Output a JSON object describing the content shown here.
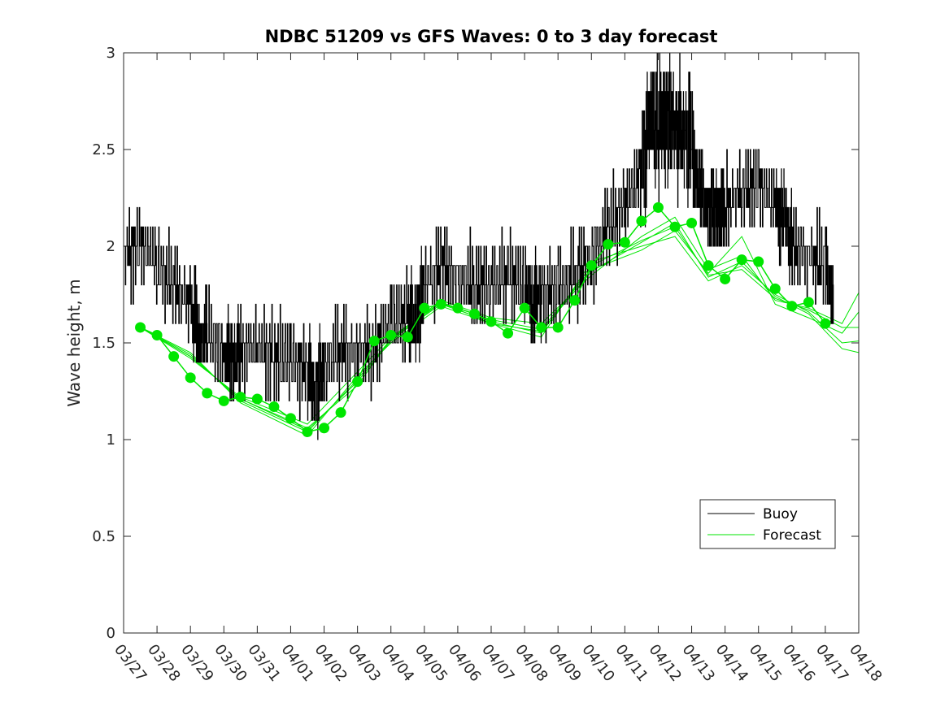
{
  "chart_data": {
    "type": "line",
    "title": "NDBC 51209 vs GFS Waves: 0 to 3 day forecast",
    "xlabel": "",
    "ylabel": "Wave height, m",
    "xlim": [
      0,
      22
    ],
    "ylim": [
      0,
      3
    ],
    "yticks": [
      0,
      0.5,
      1,
      1.5,
      2,
      2.5,
      3
    ],
    "ytick_labels": [
      "0",
      "0.5",
      "1",
      "1.5",
      "2",
      "2.5",
      "3"
    ],
    "xtick_labels": [
      "03/27",
      "03/28",
      "03/29",
      "03/30",
      "03/31",
      "04/01",
      "04/02",
      "04/03",
      "04/04",
      "04/05",
      "04/06",
      "04/07",
      "04/08",
      "04/09",
      "04/10",
      "04/11",
      "04/12",
      "04/13",
      "04/14",
      "04/15",
      "04/16",
      "04/17",
      "04/18"
    ],
    "legend": {
      "position": "bottom-right",
      "entries": [
        {
          "label": "Buoy",
          "color": "#000000"
        },
        {
          "label": "Forecast",
          "color": "#00e600"
        }
      ]
    },
    "series": [
      {
        "name": "Buoy",
        "color": "#000000",
        "x": [
          0,
          0.5,
          1,
          1.5,
          2,
          2.25,
          2.5,
          3,
          3.25,
          3.5,
          4,
          4.5,
          5,
          5.5,
          5.75,
          6,
          6.5,
          7,
          7.5,
          8,
          8.5,
          8.75,
          9,
          9.5,
          10,
          10.5,
          11,
          11.5,
          12,
          12.25,
          12.5,
          13,
          13.5,
          14,
          14.5,
          15,
          15.5,
          15.75,
          16,
          16.25,
          16.5,
          16.75,
          17,
          17.25,
          17.5,
          17.75,
          18,
          18.5,
          19,
          19.5,
          19.75,
          20,
          20.5,
          21,
          21.25
        ],
        "values": [
          1.95,
          2.0,
          1.9,
          1.8,
          1.7,
          1.55,
          1.55,
          1.45,
          1.4,
          1.45,
          1.45,
          1.45,
          1.4,
          1.35,
          1.25,
          1.4,
          1.45,
          1.45,
          1.45,
          1.6,
          1.65,
          1.6,
          1.8,
          1.9,
          1.85,
          1.8,
          1.8,
          1.85,
          1.8,
          1.7,
          1.75,
          1.8,
          1.85,
          1.95,
          2.1,
          2.2,
          2.4,
          2.65,
          2.6,
          2.7,
          2.6,
          2.6,
          2.5,
          2.3,
          2.2,
          2.2,
          2.2,
          2.3,
          2.3,
          2.2,
          2.15,
          2.0,
          1.95,
          1.9,
          1.75
        ],
        "markers": false
      },
      {
        "name": "Forecast",
        "color": "#00e600",
        "x": [
          0.5,
          1,
          1.5,
          2,
          2.5,
          3,
          3.5,
          4,
          4.5,
          5,
          5.5,
          6,
          6.5,
          7,
          7.5,
          8,
          8.5,
          9,
          9.5,
          10,
          10.5,
          11,
          11.5,
          12,
          12.5,
          13,
          13.5,
          14,
          14.5,
          15,
          15.5,
          16,
          16.5,
          17,
          17.5,
          18,
          18.5,
          19,
          19.5,
          20,
          20.5,
          21
        ],
        "values": [
          1.58,
          1.54,
          1.43,
          1.32,
          1.24,
          1.2,
          1.22,
          1.21,
          1.17,
          1.11,
          1.04,
          1.06,
          1.14,
          1.3,
          1.51,
          1.54,
          1.53,
          1.68,
          1.7,
          1.68,
          1.65,
          1.61,
          1.55,
          1.68,
          1.58,
          1.58,
          1.72,
          1.9,
          2.01,
          2.02,
          2.13,
          2.2,
          2.1,
          2.12,
          1.9,
          1.83,
          1.93,
          1.92,
          1.78,
          1.69,
          1.71,
          1.6
        ],
        "markers": true
      }
    ],
    "forecast_spread": [
      {
        "x": [
          0.5,
          2,
          3.5,
          5.5,
          7,
          8,
          9.5,
          11,
          12.5,
          14,
          15.5,
          16.5,
          17.5,
          18.5,
          19.5,
          20.5,
          21.5,
          22
        ],
        "values": [
          1.58,
          1.43,
          1.21,
          1.06,
          1.28,
          1.52,
          1.72,
          1.63,
          1.6,
          1.85,
          2.05,
          2.15,
          1.88,
          1.95,
          1.72,
          1.68,
          1.6,
          1.76
        ]
      },
      {
        "x": [
          0.5,
          2,
          3.5,
          5.5,
          7,
          8,
          9.5,
          11,
          12.5,
          14,
          15.5,
          16.5,
          17.5,
          18.5,
          19.5,
          20.5,
          21.5,
          22
        ],
        "values": [
          1.58,
          1.45,
          1.19,
          1.02,
          1.33,
          1.5,
          1.69,
          1.6,
          1.53,
          1.92,
          2.0,
          2.05,
          1.82,
          1.9,
          1.75,
          1.66,
          1.5,
          1.51
        ]
      },
      {
        "x": [
          0.5,
          2,
          3.5,
          5.5,
          7,
          8,
          9.5,
          11,
          12.5,
          14,
          15.5,
          16.5,
          17.5,
          18.5,
          19.5,
          20.5,
          21.5,
          22
        ],
        "values": [
          1.58,
          1.42,
          1.22,
          1.08,
          1.35,
          1.53,
          1.71,
          1.62,
          1.57,
          1.88,
          1.98,
          2.08,
          1.86,
          2.05,
          1.7,
          1.63,
          1.55,
          1.66
        ]
      },
      {
        "x": [
          0.5,
          2,
          3.5,
          5.5,
          7,
          8,
          9.5,
          11,
          12.5,
          14,
          15.5,
          16.5,
          17.5,
          18.5,
          19.5,
          20.5,
          21.5,
          22
        ],
        "values": [
          1.58,
          1.44,
          1.2,
          1.04,
          1.31,
          1.52,
          1.7,
          1.61,
          1.55,
          1.9,
          2.03,
          2.1,
          1.85,
          1.88,
          1.73,
          1.67,
          1.58,
          1.58
        ]
      },
      {
        "x": [
          0.5,
          2,
          3.5,
          5.5,
          7,
          8,
          9.5,
          11,
          12.5,
          14,
          15.5,
          16.5,
          17.5,
          18.5,
          19.5,
          20.5,
          21.5,
          22
        ],
        "values": [
          1.58,
          1.43,
          1.21,
          1.05,
          1.3,
          1.51,
          1.71,
          1.6,
          1.56,
          1.87,
          2.02,
          2.12,
          1.84,
          1.92,
          1.74,
          1.65,
          1.47,
          1.45
        ]
      }
    ]
  }
}
